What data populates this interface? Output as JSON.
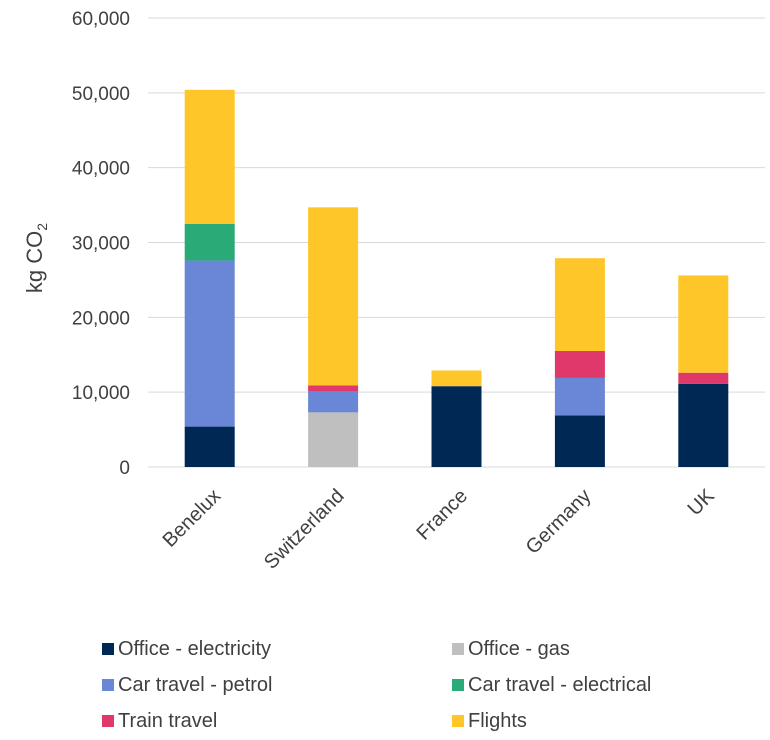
{
  "chart_data": {
    "type": "bar",
    "stacked": true,
    "categories": [
      "Benelux",
      "Switzerland",
      "France",
      "Germany",
      "UK"
    ],
    "ylabel": "kg CO",
    "ylabel_sub": "2",
    "ylim": [
      0,
      60000
    ],
    "yticks": [
      0,
      10000,
      20000,
      30000,
      40000,
      50000,
      60000
    ],
    "ytick_labels": [
      "0",
      "10,000",
      "20,000",
      "30,000",
      "40,000",
      "50,000",
      "60,000"
    ],
    "grid": true,
    "legend_position": "bottom",
    "series": [
      {
        "name": "Office - electricity",
        "color": "#002855",
        "values": [
          5400,
          0,
          10800,
          6900,
          11100
        ]
      },
      {
        "name": "Office - gas",
        "color": "#bfbfbf",
        "values": [
          0,
          7300,
          0,
          0,
          0
        ]
      },
      {
        "name": "Car travel - petrol",
        "color": "#6a86d6",
        "values": [
          22200,
          2800,
          0,
          5000,
          0
        ]
      },
      {
        "name": "Car travel - electrical",
        "color": "#2aaa76",
        "values": [
          4900,
          0,
          0,
          0,
          0
        ]
      },
      {
        "name": "Train travel",
        "color": "#e0386a",
        "values": [
          0,
          800,
          0,
          3600,
          1500
        ]
      },
      {
        "name": "Flights",
        "color": "#ffc629",
        "values": [
          17900,
          23800,
          2100,
          12400,
          13000
        ]
      }
    ]
  }
}
